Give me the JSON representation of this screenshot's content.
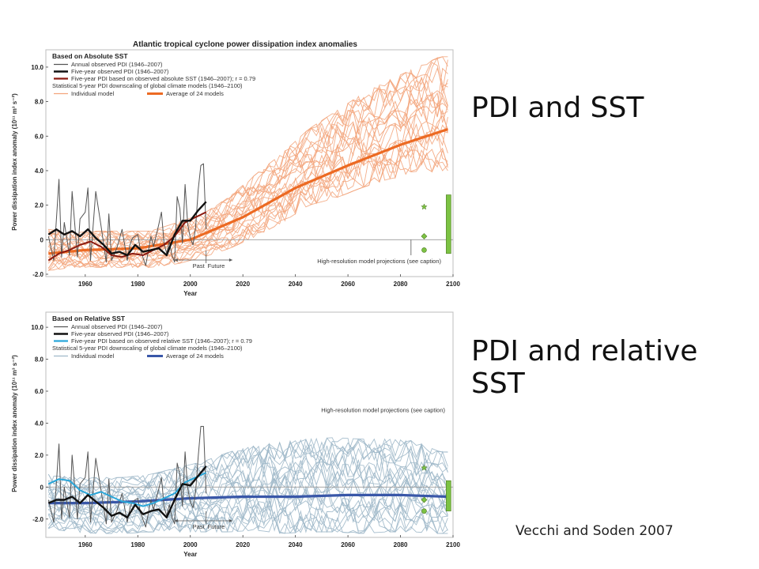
{
  "slide": {
    "heading_top": "PDI and SST",
    "heading_bottom": "PDI and relative SST",
    "credit": "Vecchi and Soden 2007"
  },
  "chart_data": [
    {
      "type": "line",
      "title": "Atlantic tropical cyclone power dissipation index anomalies",
      "panel_label": "Based on Absolute SST",
      "xlabel": "Year",
      "ylabel": "Power dissipation index anomaly (10¹¹ m³ s⁻²)",
      "xlim": [
        1945,
        2100
      ],
      "ylim": [
        -2.0,
        10.5
      ],
      "x_ticks": [
        1960,
        1980,
        2000,
        2020,
        2040,
        2060,
        2080,
        2100
      ],
      "y_ticks": [
        -2.0,
        0,
        2.0,
        4.0,
        6.0,
        8.0,
        10.0
      ],
      "y_tick_labels": [
        "-2.0",
        "0",
        "2.0",
        "4.0",
        "6.0",
        "8.0",
        "10.0"
      ],
      "legend_placement": "top-left",
      "legend": {
        "annual": "Annual observed PDI (1946–2007)",
        "five_year": "Five-year observed PDI (1946–2007)",
        "fit": "Five-year PDI based on observed absolute SST (1946–2007); r = 0.79",
        "downscale_header": "Statistical 5-year PDI downscaling of global climate models (1946–2100)",
        "individual": "Individual model",
        "average": "Average of 24 models"
      },
      "annotations": {
        "past": "Past",
        "future": "Future",
        "highres": "High-resolution model projections (see caption)"
      },
      "colors": {
        "annual": "#555555",
        "five_year": "#111111",
        "fit": "#8b1a10",
        "individual": "#f3a57c",
        "average": "#ec6a23",
        "marker": "#7cc243",
        "bar": "#7cc243"
      },
      "series": [
        {
          "role": "annual",
          "x": [
            1946,
            1948,
            1950,
            1951,
            1952,
            1954,
            1955,
            1957,
            1958,
            1960,
            1961,
            1962,
            1964,
            1966,
            1968,
            1969,
            1970,
            1972,
            1974,
            1976,
            1977,
            1978,
            1980,
            1981,
            1983,
            1985,
            1986,
            1988,
            1989,
            1990,
            1991,
            1992,
            1993,
            1994,
            1995,
            1996,
            1997,
            1998,
            1999,
            2000,
            2001,
            2002,
            2003,
            2004,
            2005,
            2006
          ],
          "y": [
            0.2,
            -1.2,
            3.5,
            -1.0,
            1.0,
            -0.9,
            2.8,
            -1.0,
            1.2,
            1.6,
            3.0,
            -1.2,
            2.8,
            0.8,
            -1.3,
            1.5,
            -1.2,
            -0.5,
            0.6,
            -1.2,
            -0.3,
            0.1,
            0.3,
            -0.6,
            -1.5,
            0.2,
            -0.4,
            0.9,
            1.6,
            -0.2,
            -0.8,
            -0.1,
            -0.9,
            -1.3,
            2.5,
            1.8,
            -0.2,
            3.2,
            0.9,
            0.1,
            -0.3,
            0.7,
            2.9,
            4.3,
            4.4,
            0.6
          ]
        },
        {
          "role": "five_year",
          "x": [
            1946,
            1949,
            1952,
            1955,
            1958,
            1961,
            1964,
            1967,
            1970,
            1973,
            1976,
            1979,
            1982,
            1985,
            1988,
            1991,
            1994,
            1997,
            2000,
            2003,
            2006
          ],
          "y": [
            0.3,
            0.6,
            0.3,
            0.5,
            0.2,
            0.6,
            0.1,
            -0.3,
            -0.8,
            -0.7,
            -0.9,
            -0.3,
            -0.7,
            -0.6,
            -0.5,
            -0.9,
            0.3,
            1.1,
            1.1,
            1.7,
            2.2
          ]
        },
        {
          "role": "fit",
          "x": [
            1946,
            1950,
            1954,
            1958,
            1962,
            1966,
            1970,
            1974,
            1978,
            1982,
            1986,
            1990,
            1994,
            1998,
            2002,
            2006
          ],
          "y": [
            -1.2,
            -0.8,
            -0.6,
            -0.3,
            -0.1,
            -0.4,
            -0.9,
            -1.0,
            -0.8,
            -0.9,
            -0.6,
            -0.3,
            0.2,
            1.0,
            1.3,
            1.6
          ]
        },
        {
          "role": "average",
          "name": "Average of 24 models",
          "x": [
            1946,
            1960,
            1980,
            2000,
            2020,
            2040,
            2060,
            2080,
            2098
          ],
          "y": [
            -0.8,
            -0.6,
            -0.5,
            0.0,
            1.3,
            3.0,
            4.3,
            5.5,
            6.4
          ]
        }
      ],
      "individual_models": {
        "count": 24,
        "x": [
          1946,
          1955,
          1965,
          1975,
          1985,
          1995,
          2005,
          2015,
          2025,
          2035,
          2045,
          2055,
          2065,
          2075,
          2085,
          2095,
          2098
        ],
        "y_min": [
          -1.8,
          -1.6,
          -1.6,
          -1.6,
          -1.6,
          -1.4,
          -1.0,
          -0.5,
          0.2,
          1.0,
          2.0,
          2.4,
          3.0,
          3.5,
          3.8,
          4.0,
          4.0
        ],
        "y_max": [
          0.6,
          0.4,
          0.5,
          0.5,
          0.5,
          1.0,
          1.5,
          2.5,
          3.8,
          5.0,
          6.4,
          7.4,
          8.4,
          9.2,
          9.9,
          10.6,
          10.6
        ]
      },
      "highres_markers": [
        {
          "shape": "star",
          "x": 2089,
          "y": 1.9
        },
        {
          "shape": "diamond",
          "x": 2089,
          "y": 0.2
        },
        {
          "shape": "circle",
          "x": 2089,
          "y": -0.6
        }
      ],
      "highres_bar": {
        "x": 2098,
        "y_min": -0.8,
        "y_max": 2.6
      }
    },
    {
      "type": "line",
      "panel_label": "Based on Relative SST",
      "xlabel": "Year",
      "ylabel": "Power dissipation index anomaly (10¹¹ m³ s⁻²)",
      "xlim": [
        1945,
        2100
      ],
      "ylim": [
        -3.0,
        10.5
      ],
      "x_ticks": [
        1960,
        1980,
        2000,
        2020,
        2040,
        2060,
        2080,
        2100
      ],
      "y_ticks": [
        -2.0,
        0,
        2.0,
        4.0,
        6.0,
        8.0,
        10.0
      ],
      "y_tick_labels": [
        "-2.0",
        "0",
        "2.0",
        "4.0",
        "6.0",
        "8.0",
        "10.0"
      ],
      "legend_placement": "top-left",
      "legend": {
        "annual": "Annual observed PDI (1946–2007)",
        "five_year": "Five-year observed PDI (1946–2007)",
        "fit": "Five-year PDI based on observed relative SST (1946–2007); r = 0.79",
        "downscale_header": "Statistical 5-year PDI downscaling of global climate models (1946–2100)",
        "individual": "Individual model",
        "average": "Average of 24 models"
      },
      "annotations": {
        "past": "Past",
        "future": "Future",
        "highres": "High-resolution model projections (see caption)"
      },
      "colors": {
        "annual": "#555555",
        "five_year": "#111111",
        "fit": "#29a6d9",
        "individual": "#9fb8c9",
        "average": "#3957a8",
        "marker": "#7cc243",
        "bar": "#7cc243"
      },
      "series": [
        {
          "role": "annual",
          "x": [
            1946,
            1948,
            1950,
            1951,
            1952,
            1954,
            1955,
            1957,
            1958,
            1960,
            1961,
            1962,
            1964,
            1966,
            1968,
            1969,
            1970,
            1972,
            1974,
            1976,
            1977,
            1978,
            1980,
            1981,
            1983,
            1985,
            1986,
            1988,
            1989,
            1990,
            1991,
            1992,
            1993,
            1994,
            1995,
            1996,
            1997,
            1998,
            1999,
            2000,
            2001,
            2002,
            2003,
            2004,
            2005,
            2006
          ],
          "y": [
            -0.8,
            -2.2,
            2.7,
            -2.0,
            0.0,
            -1.9,
            2.0,
            -2.0,
            0.2,
            0.6,
            2.2,
            -2.2,
            1.8,
            -0.2,
            -2.3,
            0.5,
            -2.2,
            -1.5,
            -0.4,
            -2.2,
            -1.3,
            -0.9,
            -0.7,
            -1.6,
            -2.5,
            -0.8,
            -1.4,
            -0.1,
            0.6,
            -1.2,
            -1.8,
            -1.1,
            -1.9,
            -2.3,
            1.5,
            0.8,
            -1.2,
            2.2,
            -0.1,
            -0.9,
            -1.3,
            -0.3,
            1.9,
            3.8,
            3.8,
            -0.4
          ]
        },
        {
          "role": "five_year",
          "x": [
            1946,
            1949,
            1952,
            1955,
            1958,
            1961,
            1964,
            1967,
            1970,
            1973,
            1976,
            1979,
            1982,
            1985,
            1988,
            1991,
            1994,
            1997,
            2000,
            2003,
            2006
          ],
          "y": [
            -1.0,
            -0.8,
            -0.8,
            -0.6,
            -1.0,
            -0.5,
            -0.9,
            -1.3,
            -1.8,
            -1.6,
            -1.9,
            -1.1,
            -1.7,
            -1.5,
            -1.4,
            -1.9,
            -0.8,
            0.2,
            0.1,
            0.7,
            1.3
          ]
        },
        {
          "role": "fit",
          "x": [
            1946,
            1950,
            1954,
            1958,
            1962,
            1966,
            1970,
            1974,
            1978,
            1982,
            1986,
            1990,
            1994,
            1998,
            2002,
            2006
          ],
          "y": [
            0.2,
            0.5,
            0.4,
            -0.2,
            -0.5,
            -0.3,
            -0.6,
            -0.9,
            -1.0,
            -1.2,
            -1.0,
            -0.7,
            -0.4,
            0.3,
            0.6,
            0.9
          ]
        },
        {
          "role": "average",
          "name": "Average of 24 models",
          "x": [
            1946,
            1960,
            1980,
            2000,
            2020,
            2040,
            2060,
            2080,
            2098
          ],
          "y": [
            -1.0,
            -1.0,
            -0.9,
            -0.7,
            -0.6,
            -0.6,
            -0.5,
            -0.5,
            -0.6
          ]
        }
      ],
      "individual_models": {
        "count": 24,
        "x": [
          1946,
          1955,
          1965,
          1975,
          1985,
          1995,
          2005,
          2015,
          2025,
          2035,
          2045,
          2055,
          2065,
          2075,
          2085,
          2095,
          2098
        ],
        "y_min": [
          -2.6,
          -2.8,
          -2.9,
          -2.9,
          -2.8,
          -2.8,
          -2.8,
          -2.8,
          -2.7,
          -2.9,
          -2.8,
          -2.8,
          -2.9,
          -2.8,
          -2.8,
          -2.9,
          -2.9
        ],
        "y_max": [
          0.8,
          0.6,
          0.6,
          0.6,
          0.8,
          1.2,
          1.6,
          2.2,
          2.6,
          2.8,
          3.0,
          3.1,
          3.0,
          3.0,
          2.9,
          2.2,
          2.2
        ]
      },
      "highres_markers": [
        {
          "shape": "star",
          "x": 2089,
          "y": 1.2
        },
        {
          "shape": "diamond",
          "x": 2089,
          "y": -0.8
        },
        {
          "shape": "circle",
          "x": 2089,
          "y": -1.5
        }
      ],
      "highres_bar": {
        "x": 2098,
        "y_min": -1.5,
        "y_max": 0.4
      }
    }
  ]
}
